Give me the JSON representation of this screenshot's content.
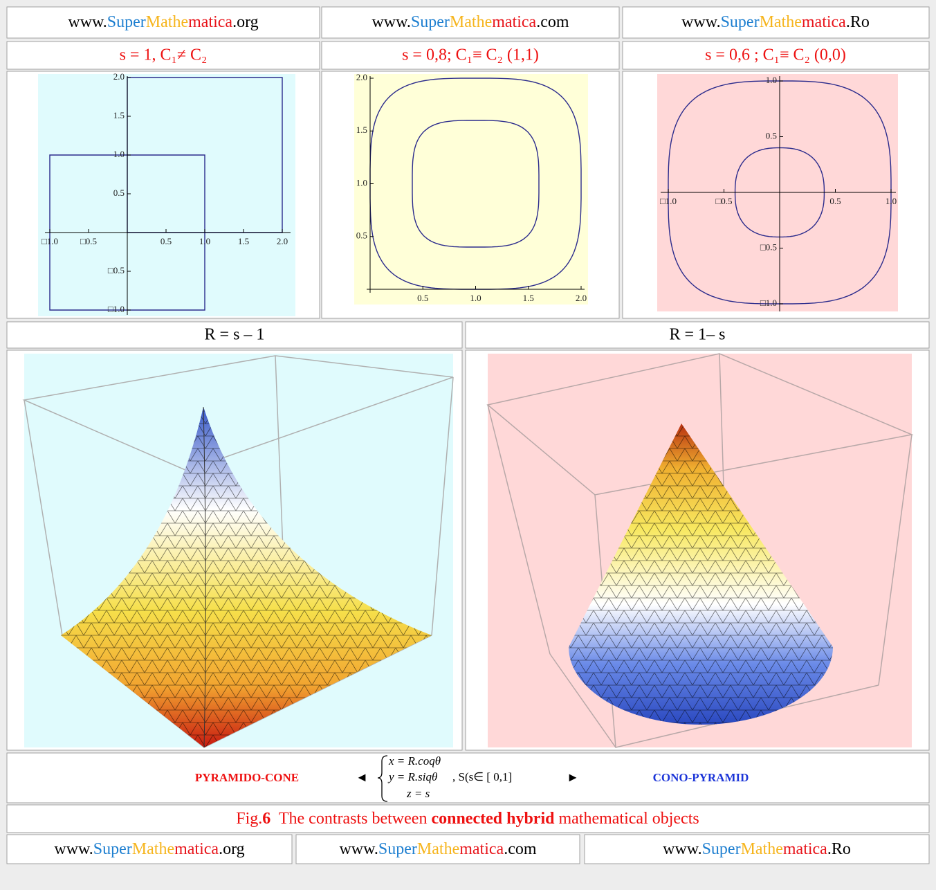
{
  "header": {
    "sites": [
      {
        "prefix": "www.",
        "super": "Super",
        "mathe": "Mathe",
        "matica": "matica",
        "suffix": ".org"
      },
      {
        "prefix": "www.",
        "super": "Super",
        "mathe": "Mathe",
        "matica": "matica",
        "suffix": ".com"
      },
      {
        "prefix": "www.",
        "super": "Super",
        "mathe": "Mathe",
        "matica": "matica",
        "suffix": ".Ro"
      }
    ]
  },
  "panels": [
    {
      "label": "s = 1, C₁≠ C₂",
      "xticks": [
        {
          "value": -1,
          "label": "□1.0"
        },
        {
          "value": -0.5,
          "label": "□0.5"
        },
        0.5,
        {
          "value": 1,
          "label": "1.0"
        },
        1.5,
        {
          "value": 2,
          "label": "2.0"
        }
      ],
      "yticks": [
        {
          "value": 2,
          "label": "2.0"
        },
        1.5,
        {
          "value": 1,
          "label": "1.0"
        },
        0.5,
        {
          "value": -0.5,
          "label": "□0.5"
        },
        {
          "value": -1,
          "label": "□1.0"
        }
      ]
    },
    {
      "label": "s = 0,8; C₁≡ C₂ (1,1)",
      "xticks": [
        0.5,
        {
          "value": 1,
          "label": "1.0"
        },
        1.5,
        {
          "value": 2,
          "label": "2.0"
        }
      ],
      "yticks": [
        0.5,
        {
          "value": 1,
          "label": "1.0"
        },
        1.5,
        {
          "value": 2,
          "label": "2.0"
        }
      ]
    },
    {
      "label": "s = 0,6 ; C₁≡ C₂ (0,0)",
      "xticks": [
        {
          "value": -1,
          "label": "□1.0"
        },
        {
          "value": -0.5,
          "label": "□0.5"
        },
        0.5,
        {
          "value": 1,
          "label": "1.0"
        }
      ],
      "yticks": [
        {
          "value": 1,
          "label": "1.0"
        },
        0.5,
        {
          "value": -0.5,
          "label": "□0.5"
        },
        {
          "value": -1,
          "label": "□1.0"
        }
      ]
    }
  ],
  "surfaces": [
    {
      "label": "R = s – 1"
    },
    {
      "label": "R = 1– s"
    }
  ],
  "formula": {
    "left": "PYRAMIDO-CONE",
    "left_arrow": "◄",
    "lines": [
      "x = R.coqθ",
      "y = R.siqθ",
      "z = s"
    ],
    "condition": ", S(s∈ [ 0,1]",
    "right_arrow": "►",
    "right": "CONO-PYRAMID"
  },
  "caption": {
    "prefix": "Fig.",
    "number": "6",
    "text1": "  The contrasts between ",
    "bold": "connected hybrid",
    "text2": " mathematical objects"
  },
  "footer": {
    "sites": [
      {
        "prefix": "www.",
        "super": "Super",
        "mathe": "Mathe",
        "matica": "matica",
        "suffix": ".org"
      },
      {
        "prefix": "www.",
        "super": "Super",
        "mathe": "Mathe",
        "matica": "matica",
        "suffix": ".com"
      },
      {
        "prefix": "www.",
        "super": "Super",
        "mathe": "Mathe",
        "matica": "matica",
        "suffix": ".Ro"
      }
    ]
  }
}
